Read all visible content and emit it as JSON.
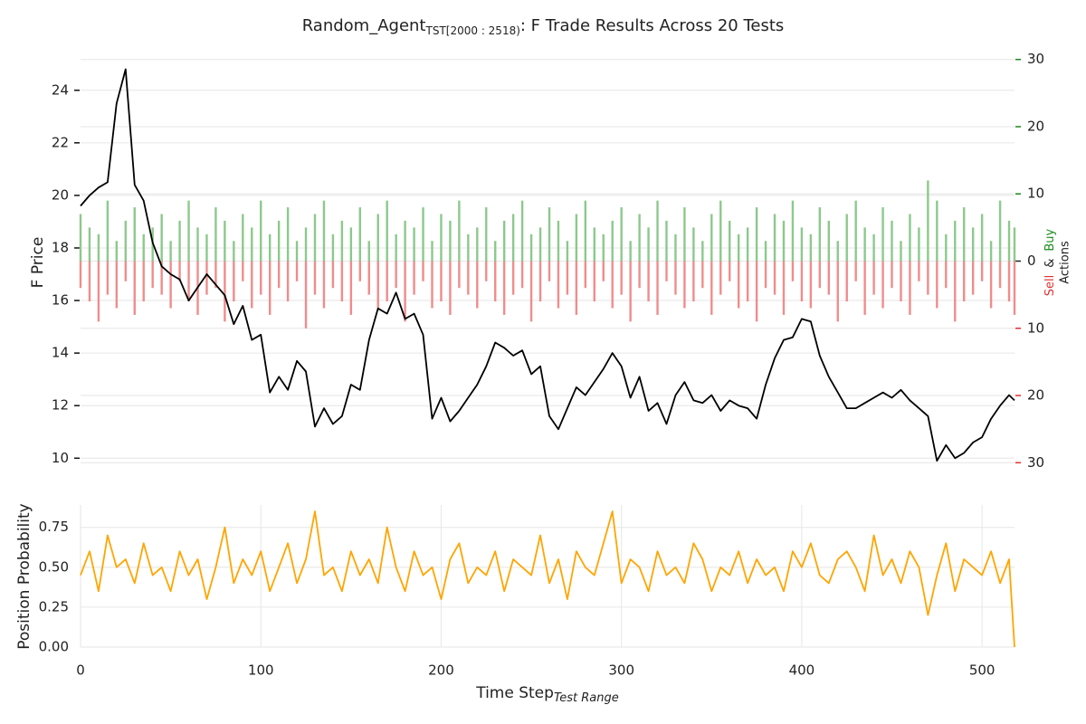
{
  "chart_data": [
    {
      "type": "line",
      "title": "Random_Agent",
      "title_sub": "TST[2000 : 2518)",
      "title_rest": ": F Trade Results Across 20 Tests",
      "ylabel": "F Price",
      "y2label": [
        "Sell",
        "&",
        "Buy"
      ],
      "y2label_colors": [
        "#e03030",
        "#222222",
        "#1a8a1a"
      ],
      "y2label_line2": "Actions",
      "x": [
        0,
        5,
        10,
        15,
        20,
        25,
        30,
        35,
        40,
        45,
        50,
        55,
        60,
        65,
        70,
        75,
        80,
        85,
        90,
        95,
        100,
        105,
        110,
        115,
        120,
        125,
        130,
        135,
        140,
        145,
        150,
        155,
        160,
        165,
        170,
        175,
        180,
        185,
        190,
        195,
        200,
        205,
        210,
        215,
        220,
        225,
        230,
        235,
        240,
        245,
        250,
        255,
        260,
        265,
        270,
        275,
        280,
        285,
        290,
        295,
        300,
        305,
        310,
        315,
        320,
        325,
        330,
        335,
        340,
        345,
        350,
        355,
        360,
        365,
        370,
        375,
        380,
        385,
        390,
        395,
        400,
        405,
        410,
        415,
        420,
        425,
        430,
        435,
        440,
        445,
        450,
        455,
        460,
        465,
        470,
        475,
        480,
        485,
        490,
        495,
        500,
        505,
        510,
        515,
        518
      ],
      "xlim": [
        0,
        518
      ],
      "ylim": [
        9.7,
        25.3
      ],
      "yticks": [
        10,
        12,
        14,
        16,
        18,
        20,
        22,
        24
      ],
      "y2lim": [
        -30.5,
        30.5
      ],
      "y2ticks": [
        {
          "value": -30,
          "label": "30"
        },
        {
          "value": -20,
          "label": "20"
        },
        {
          "value": -10,
          "label": "10"
        },
        0,
        10,
        20,
        30
      ],
      "y2tick_colors": {
        "positive": "#1a8a1a",
        "zero": "#222222",
        "negative": "#e03030"
      },
      "grid": true,
      "series": [
        {
          "color": "#000000",
          "values": [
            19.6,
            20.0,
            20.3,
            20.5,
            23.5,
            24.8,
            20.4,
            19.8,
            18.2,
            17.3,
            17.0,
            16.8,
            16.0,
            16.5,
            17.0,
            16.6,
            16.2,
            15.1,
            15.8,
            14.5,
            14.7,
            12.5,
            13.1,
            12.6,
            13.7,
            13.3,
            11.2,
            11.9,
            11.3,
            11.6,
            12.8,
            12.6,
            14.5,
            15.7,
            15.5,
            16.3,
            15.3,
            15.5,
            14.7,
            11.5,
            12.3,
            11.4,
            11.8,
            12.3,
            12.8,
            13.5,
            14.4,
            14.2,
            13.9,
            14.1,
            13.2,
            13.5,
            11.6,
            11.1,
            11.9,
            12.7,
            12.4,
            12.9,
            13.4,
            14.0,
            13.5,
            12.3,
            13.1,
            11.8,
            12.1,
            11.3,
            12.4,
            12.9,
            12.2,
            12.1,
            12.4,
            11.8,
            12.2,
            12.0,
            11.9,
            11.5,
            12.8,
            13.8,
            14.5,
            14.6,
            15.3,
            15.2,
            13.9,
            13.1,
            12.5,
            11.9,
            11.9,
            12.1,
            12.3,
            12.5,
            12.3,
            12.6,
            12.2,
            11.9,
            11.6,
            9.9,
            10.5,
            10.0,
            10.2,
            10.6,
            10.8,
            11.5,
            12.0,
            12.4,
            12.2
          ]
        },
        {
          "type": "bar",
          "axis": "y2",
          "color": "#8cc98c",
          "values": [
            7,
            5,
            4,
            9,
            3,
            6,
            8,
            4,
            5,
            7,
            3,
            6,
            9,
            5,
            4,
            8,
            6,
            3,
            7,
            5,
            9,
            4,
            6,
            8,
            3,
            5,
            7,
            9,
            4,
            6,
            5,
            8,
            3,
            7,
            9,
            4,
            6,
            5,
            8,
            3,
            7,
            6,
            9,
            4,
            5,
            8,
            3,
            6,
            7,
            9,
            4,
            5,
            8,
            6,
            3,
            7,
            9,
            5,
            4,
            6,
            8,
            3,
            7,
            5,
            9,
            6,
            4,
            8,
            5,
            3,
            7,
            9,
            6,
            4,
            5,
            8,
            3,
            7,
            6,
            9,
            5,
            4,
            8,
            6,
            3,
            7,
            9,
            5,
            4,
            8,
            6,
            3,
            7,
            5,
            12,
            9,
            4,
            6,
            8,
            5,
            7,
            3,
            9,
            6,
            5
          ]
        },
        {
          "type": "bar",
          "axis": "y2",
          "color": "#f08c8c",
          "values": [
            -4,
            -6,
            -9,
            -5,
            -7,
            -3,
            -8,
            -6,
            -4,
            -5,
            -7,
            -3,
            -6,
            -8,
            -5,
            -4,
            -9,
            -6,
            -3,
            -7,
            -5,
            -8,
            -4,
            -6,
            -3,
            -10,
            -5,
            -7,
            -4,
            -6,
            -8,
            -3,
            -5,
            -7,
            -6,
            -4,
            -9,
            -5,
            -3,
            -7,
            -6,
            -8,
            -4,
            -5,
            -7,
            -3,
            -6,
            -8,
            -5,
            -4,
            -9,
            -6,
            -3,
            -7,
            -5,
            -8,
            -4,
            -6,
            -3,
            -7,
            -5,
            -9,
            -4,
            -6,
            -8,
            -3,
            -5,
            -7,
            -6,
            -4,
            -8,
            -5,
            -3,
            -7,
            -6,
            -9,
            -4,
            -5,
            -8,
            -3,
            -6,
            -7,
            -4,
            -5,
            -9,
            -6,
            -3,
            -8,
            -5,
            -7,
            -4,
            -6,
            -8,
            -3,
            -5,
            -7,
            -4,
            -9,
            -6,
            -5,
            -3,
            -7,
            -4,
            -6,
            -8
          ]
        }
      ]
    },
    {
      "type": "line",
      "ylabel": "Position Probability",
      "xlabel": "Time Step",
      "xlabel_sub": "Test Range",
      "x": [
        0,
        5,
        10,
        15,
        20,
        25,
        30,
        35,
        40,
        45,
        50,
        55,
        60,
        65,
        70,
        75,
        80,
        85,
        90,
        95,
        100,
        105,
        110,
        115,
        120,
        125,
        130,
        135,
        140,
        145,
        150,
        155,
        160,
        165,
        170,
        175,
        180,
        185,
        190,
        195,
        200,
        205,
        210,
        215,
        220,
        225,
        230,
        235,
        240,
        245,
        250,
        255,
        260,
        265,
        270,
        275,
        280,
        285,
        290,
        295,
        300,
        305,
        310,
        315,
        320,
        325,
        330,
        335,
        340,
        345,
        350,
        355,
        360,
        365,
        370,
        375,
        380,
        385,
        390,
        395,
        400,
        405,
        410,
        415,
        420,
        425,
        430,
        435,
        440,
        445,
        450,
        455,
        460,
        465,
        470,
        475,
        480,
        485,
        490,
        495,
        500,
        505,
        510,
        515,
        518
      ],
      "xlim": [
        0,
        518
      ],
      "xticks": [
        0,
        100,
        200,
        300,
        400,
        500
      ],
      "ylim": [
        0,
        0.89
      ],
      "yticks": [
        {
          "value": 0,
          "label": "0.00"
        },
        0.25,
        {
          "value": 0.5,
          "label": "0.50"
        },
        0.75
      ],
      "grid": true,
      "series": [
        {
          "color": "#ffa500",
          "values": [
            0.45,
            0.6,
            0.35,
            0.7,
            0.5,
            0.55,
            0.4,
            0.65,
            0.45,
            0.5,
            0.35,
            0.6,
            0.45,
            0.55,
            0.3,
            0.5,
            0.75,
            0.4,
            0.55,
            0.45,
            0.6,
            0.35,
            0.5,
            0.65,
            0.4,
            0.55,
            0.85,
            0.45,
            0.5,
            0.35,
            0.6,
            0.45,
            0.55,
            0.4,
            0.75,
            0.5,
            0.35,
            0.6,
            0.45,
            0.5,
            0.3,
            0.55,
            0.65,
            0.4,
            0.5,
            0.45,
            0.6,
            0.35,
            0.55,
            0.5,
            0.45,
            0.7,
            0.4,
            0.55,
            0.3,
            0.6,
            0.5,
            0.45,
            0.65,
            0.85,
            0.4,
            0.55,
            0.5,
            0.35,
            0.6,
            0.45,
            0.5,
            0.4,
            0.65,
            0.55,
            0.35,
            0.5,
            0.45,
            0.6,
            0.4,
            0.55,
            0.45,
            0.5,
            0.35,
            0.6,
            0.5,
            0.65,
            0.45,
            0.4,
            0.55,
            0.6,
            0.5,
            0.35,
            0.7,
            0.45,
            0.55,
            0.4,
            0.6,
            0.5,
            0.2,
            0.45,
            0.65,
            0.35,
            0.55,
            0.5,
            0.45,
            0.6,
            0.4,
            0.55,
            0.0
          ]
        }
      ]
    }
  ]
}
